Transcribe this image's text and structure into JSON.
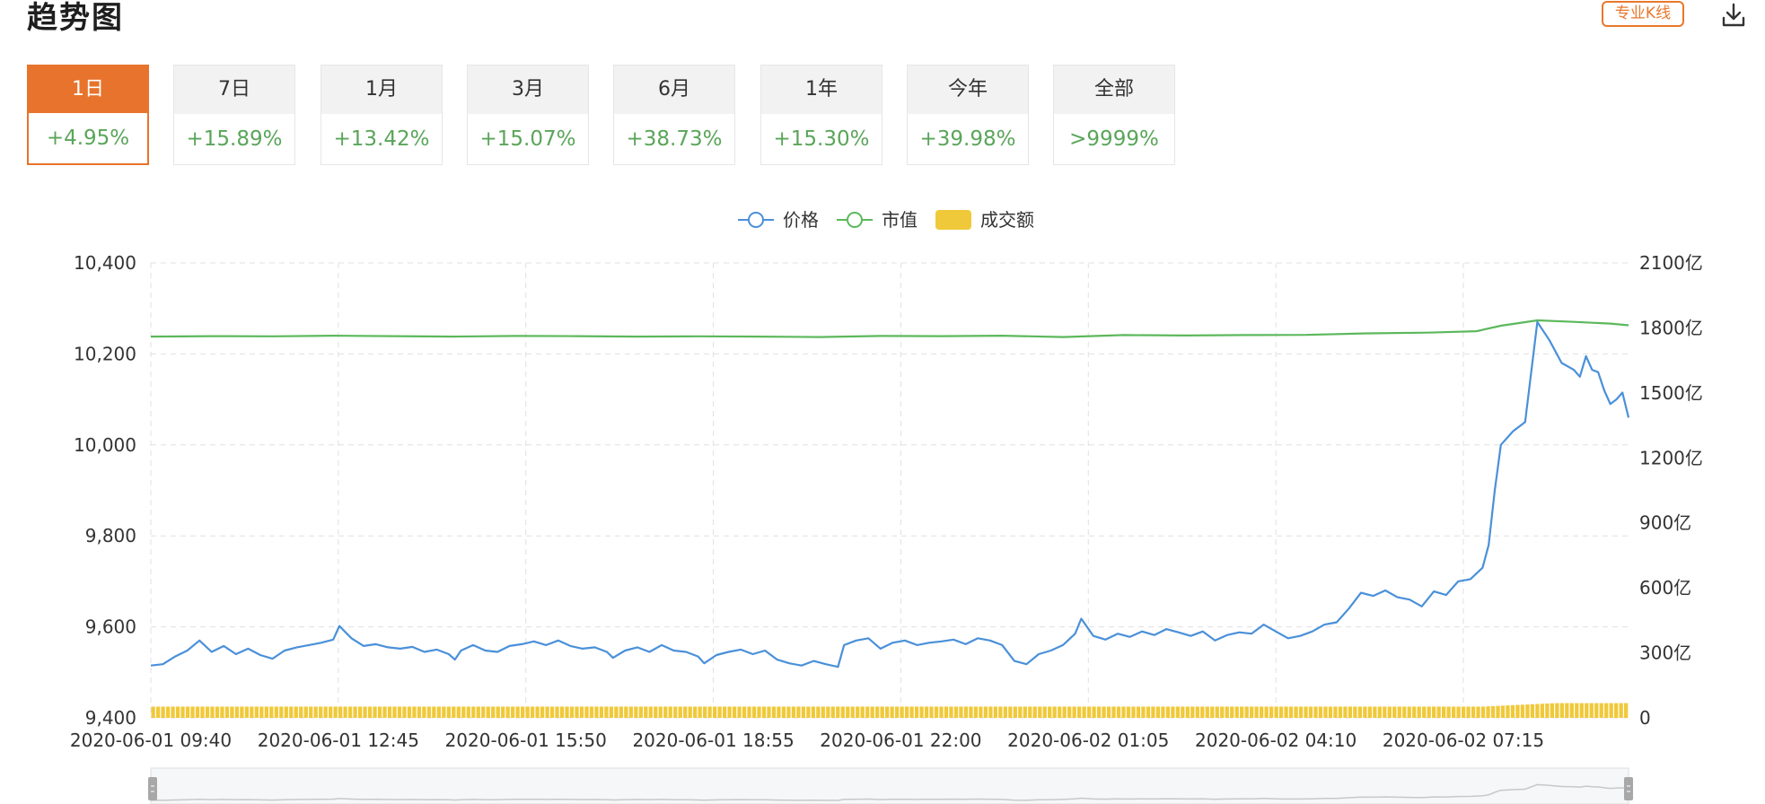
{
  "header": {
    "title": "趋势图",
    "pro_kline_label": "专业K线",
    "download_icon": "download-icon"
  },
  "tabs": [
    {
      "label": "1日",
      "change": "+4.95%",
      "active": true
    },
    {
      "label": "7日",
      "change": "+15.89%",
      "active": false
    },
    {
      "label": "1月",
      "change": "+13.42%",
      "active": false
    },
    {
      "label": "3月",
      "change": "+15.07%",
      "active": false
    },
    {
      "label": "6月",
      "change": "+38.73%",
      "active": false
    },
    {
      "label": "1年",
      "change": "+15.30%",
      "active": false
    },
    {
      "label": "今年",
      "change": "+39.98%",
      "active": false
    },
    {
      "label": "全部",
      "change": ">9999%",
      "active": false
    }
  ],
  "colors": {
    "accent": "#e8732c",
    "price_line": "#4a90d9",
    "market_cap_line": "#5cb85c",
    "volume_bar": "#f0c93a",
    "positive_change": "#5aa55a",
    "grid": "#e0e0e0"
  },
  "chart_data": {
    "type": "line",
    "legend": [
      "价格",
      "市值",
      "成交额"
    ],
    "legend_position": "top-center",
    "grid": true,
    "x_tick_labels": [
      "2020-06-01 09:40",
      "2020-06-01 12:45",
      "2020-06-01 15:50",
      "2020-06-01 18:55",
      "2020-06-01 22:00",
      "2020-06-02 01:05",
      "2020-06-02 04:10",
      "2020-06-02 07:15"
    ],
    "y_left_ticks": [
      "9,400",
      "9,600",
      "9,800",
      "10,000",
      "10,200",
      "10,400"
    ],
    "y_left_range": [
      9400,
      10400
    ],
    "y_right_ticks": [
      "0",
      "300亿",
      "600亿",
      "900亿",
      "1200亿",
      "1500亿",
      "1800亿",
      "2100亿"
    ],
    "y_right_range": [
      0,
      2100
    ],
    "x_range": [
      0,
      24
    ],
    "series": [
      {
        "name": "价格",
        "axis": "left",
        "kind": "line",
        "points": [
          [
            0,
            9515
          ],
          [
            0.2,
            9518
          ],
          [
            0.4,
            9535
          ],
          [
            0.6,
            9548
          ],
          [
            0.8,
            9570
          ],
          [
            1.0,
            9545
          ],
          [
            1.2,
            9558
          ],
          [
            1.4,
            9540
          ],
          [
            1.6,
            9552
          ],
          [
            1.8,
            9538
          ],
          [
            2.0,
            9530
          ],
          [
            2.2,
            9548
          ],
          [
            2.4,
            9555
          ],
          [
            2.6,
            9560
          ],
          [
            2.8,
            9565
          ],
          [
            3.0,
            9572
          ],
          [
            3.1,
            9602
          ],
          [
            3.3,
            9575
          ],
          [
            3.5,
            9558
          ],
          [
            3.7,
            9562
          ],
          [
            3.9,
            9555
          ],
          [
            4.1,
            9552
          ],
          [
            4.3,
            9556
          ],
          [
            4.5,
            9545
          ],
          [
            4.7,
            9550
          ],
          [
            4.9,
            9540
          ],
          [
            5.0,
            9528
          ],
          [
            5.1,
            9548
          ],
          [
            5.3,
            9560
          ],
          [
            5.5,
            9548
          ],
          [
            5.7,
            9545
          ],
          [
            5.9,
            9558
          ],
          [
            6.1,
            9562
          ],
          [
            6.3,
            9568
          ],
          [
            6.5,
            9560
          ],
          [
            6.7,
            9570
          ],
          [
            6.9,
            9558
          ],
          [
            7.1,
            9552
          ],
          [
            7.3,
            9555
          ],
          [
            7.5,
            9545
          ],
          [
            7.6,
            9532
          ],
          [
            7.8,
            9548
          ],
          [
            8.0,
            9555
          ],
          [
            8.2,
            9545
          ],
          [
            8.4,
            9560
          ],
          [
            8.6,
            9548
          ],
          [
            8.8,
            9545
          ],
          [
            9.0,
            9535
          ],
          [
            9.1,
            9520
          ],
          [
            9.3,
            9538
          ],
          [
            9.5,
            9545
          ],
          [
            9.7,
            9550
          ],
          [
            9.9,
            9540
          ],
          [
            10.1,
            9548
          ],
          [
            10.3,
            9528
          ],
          [
            10.5,
            9520
          ],
          [
            10.7,
            9515
          ],
          [
            10.9,
            9525
          ],
          [
            11.1,
            9518
          ],
          [
            11.3,
            9512
          ],
          [
            11.4,
            9560
          ],
          [
            11.6,
            9570
          ],
          [
            11.8,
            9575
          ],
          [
            12.0,
            9552
          ],
          [
            12.2,
            9565
          ],
          [
            12.4,
            9570
          ],
          [
            12.6,
            9560
          ],
          [
            12.8,
            9565
          ],
          [
            13.0,
            9568
          ],
          [
            13.2,
            9572
          ],
          [
            13.4,
            9562
          ],
          [
            13.6,
            9575
          ],
          [
            13.8,
            9570
          ],
          [
            14.0,
            9560
          ],
          [
            14.2,
            9525
          ],
          [
            14.4,
            9518
          ],
          [
            14.6,
            9540
          ],
          [
            14.8,
            9548
          ],
          [
            15.0,
            9560
          ],
          [
            15.2,
            9585
          ],
          [
            15.3,
            9618
          ],
          [
            15.5,
            9580
          ],
          [
            15.7,
            9572
          ],
          [
            15.9,
            9585
          ],
          [
            16.1,
            9578
          ],
          [
            16.3,
            9590
          ],
          [
            16.5,
            9582
          ],
          [
            16.7,
            9595
          ],
          [
            16.9,
            9588
          ],
          [
            17.1,
            9580
          ],
          [
            17.3,
            9590
          ],
          [
            17.5,
            9570
          ],
          [
            17.7,
            9582
          ],
          [
            17.9,
            9588
          ],
          [
            18.1,
            9585
          ],
          [
            18.3,
            9605
          ],
          [
            18.5,
            9590
          ],
          [
            18.7,
            9575
          ],
          [
            18.9,
            9580
          ],
          [
            19.1,
            9590
          ],
          [
            19.3,
            9605
          ],
          [
            19.5,
            9610
          ],
          [
            19.7,
            9640
          ],
          [
            19.9,
            9675
          ],
          [
            20.1,
            9668
          ],
          [
            20.3,
            9680
          ],
          [
            20.5,
            9665
          ],
          [
            20.7,
            9660
          ],
          [
            20.9,
            9645
          ],
          [
            21.1,
            9678
          ],
          [
            21.3,
            9670
          ],
          [
            21.5,
            9700
          ],
          [
            21.7,
            9705
          ],
          [
            21.9,
            9730
          ],
          [
            22.0,
            9780
          ],
          [
            22.1,
            9900
          ],
          [
            22.2,
            10000
          ],
          [
            22.4,
            10030
          ],
          [
            22.6,
            10050
          ],
          [
            22.8,
            10270
          ],
          [
            23.0,
            10230
          ],
          [
            23.2,
            10180
          ],
          [
            23.4,
            10165
          ],
          [
            23.5,
            10150
          ],
          [
            23.6,
            10195
          ],
          [
            23.7,
            10165
          ],
          [
            23.8,
            10160
          ],
          [
            23.9,
            10120
          ],
          [
            24.0,
            10090
          ],
          [
            24.1,
            10100
          ],
          [
            24.2,
            10115
          ],
          [
            24.3,
            10060
          ]
        ]
      },
      {
        "name": "市值",
        "axis": "right",
        "kind": "line",
        "points": [
          [
            0,
            1760
          ],
          [
            1,
            1762
          ],
          [
            2,
            1761
          ],
          [
            3,
            1764
          ],
          [
            4,
            1762
          ],
          [
            5,
            1760
          ],
          [
            6,
            1763
          ],
          [
            7,
            1762
          ],
          [
            8,
            1760
          ],
          [
            9,
            1761
          ],
          [
            10,
            1760
          ],
          [
            11,
            1758
          ],
          [
            12,
            1763
          ],
          [
            13,
            1762
          ],
          [
            14,
            1764
          ],
          [
            15,
            1758
          ],
          [
            16,
            1767
          ],
          [
            17,
            1765
          ],
          [
            18,
            1767
          ],
          [
            19,
            1768
          ],
          [
            20,
            1775
          ],
          [
            21,
            1778
          ],
          [
            21.8,
            1785
          ],
          [
            22.2,
            1810
          ],
          [
            22.8,
            1835
          ],
          [
            23.4,
            1828
          ],
          [
            24.0,
            1820
          ],
          [
            24.3,
            1812
          ]
        ]
      },
      {
        "name": "成交额",
        "axis": "right",
        "kind": "bar",
        "values_from_x": [
          0,
          24.3
        ],
        "base_level": 52,
        "late_level_start_x": 21.9,
        "late_level": 68
      }
    ]
  }
}
